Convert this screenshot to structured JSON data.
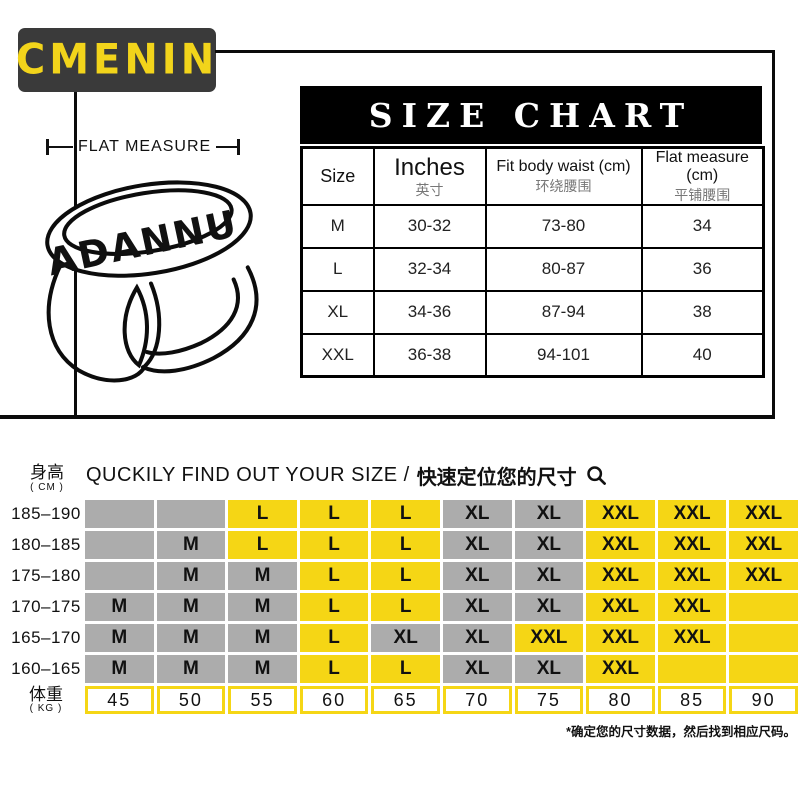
{
  "colors": {
    "accent_yellow": "#F5D615",
    "cell_gray": "#ACACAC",
    "logo_bg": "#3A3A3A",
    "table_black": "#000000"
  },
  "icons": {
    "search": "magnifier-icon"
  },
  "brand": {
    "logo_text": "CMENIN"
  },
  "illustration": {
    "flat_measure_label": "FLAT MEASURE",
    "waistband_text": "ADANNU"
  },
  "size_chart": {
    "title": "SIZE CHART",
    "columns": [
      {
        "en": "Size",
        "zh": ""
      },
      {
        "en": "Inches",
        "zh": "英寸"
      },
      {
        "en": "Fit body waist (cm)",
        "zh": "环绕腰围"
      },
      {
        "en": "Flat measure (cm)",
        "zh": "平铺腰围"
      }
    ],
    "rows": [
      {
        "size": "M",
        "inches": "30-32",
        "fit": "73-80",
        "flat": "34"
      },
      {
        "size": "L",
        "inches": "32-34",
        "fit": "80-87",
        "flat": "36"
      },
      {
        "size": "XL",
        "inches": "34-36",
        "fit": "87-94",
        "flat": "38"
      },
      {
        "size": "XXL",
        "inches": "36-38",
        "fit": "94-101",
        "flat": "40"
      }
    ]
  },
  "finder": {
    "title_en": "QUCKILY FIND OUT YOUR SIZE /",
    "title_zh": "快速定位您的尺寸",
    "height_label": "身高",
    "height_unit": "( CM )",
    "weight_label": "体重",
    "weight_unit": "( KG )",
    "weights": [
      "45",
      "50",
      "55",
      "60",
      "65",
      "70",
      "75",
      "80",
      "85",
      "90"
    ],
    "rows": [
      {
        "height": "185–190",
        "cells": [
          {
            "v": "",
            "bg": "g"
          },
          {
            "v": "",
            "bg": "g"
          },
          {
            "v": "L",
            "bg": "y"
          },
          {
            "v": "L",
            "bg": "y"
          },
          {
            "v": "L",
            "bg": "y"
          },
          {
            "v": "XL",
            "bg": "g"
          },
          {
            "v": "XL",
            "bg": "g"
          },
          {
            "v": "XXL",
            "bg": "y"
          },
          {
            "v": "XXL",
            "bg": "y"
          },
          {
            "v": "XXL",
            "bg": "y"
          }
        ]
      },
      {
        "height": "180–185",
        "cells": [
          {
            "v": "",
            "bg": "g"
          },
          {
            "v": "M",
            "bg": "g"
          },
          {
            "v": "L",
            "bg": "y"
          },
          {
            "v": "L",
            "bg": "y"
          },
          {
            "v": "L",
            "bg": "y"
          },
          {
            "v": "XL",
            "bg": "g"
          },
          {
            "v": "XL",
            "bg": "g"
          },
          {
            "v": "XXL",
            "bg": "y"
          },
          {
            "v": "XXL",
            "bg": "y"
          },
          {
            "v": "XXL",
            "bg": "y"
          }
        ]
      },
      {
        "height": "175–180",
        "cells": [
          {
            "v": "",
            "bg": "g"
          },
          {
            "v": "M",
            "bg": "g"
          },
          {
            "v": "M",
            "bg": "g"
          },
          {
            "v": "L",
            "bg": "y"
          },
          {
            "v": "L",
            "bg": "y"
          },
          {
            "v": "XL",
            "bg": "g"
          },
          {
            "v": "XL",
            "bg": "g"
          },
          {
            "v": "XXL",
            "bg": "y"
          },
          {
            "v": "XXL",
            "bg": "y"
          },
          {
            "v": "XXL",
            "bg": "y"
          }
        ]
      },
      {
        "height": "170–175",
        "cells": [
          {
            "v": "M",
            "bg": "g"
          },
          {
            "v": "M",
            "bg": "g"
          },
          {
            "v": "M",
            "bg": "g"
          },
          {
            "v": "L",
            "bg": "y"
          },
          {
            "v": "L",
            "bg": "y"
          },
          {
            "v": "XL",
            "bg": "g"
          },
          {
            "v": "XL",
            "bg": "g"
          },
          {
            "v": "XXL",
            "bg": "y"
          },
          {
            "v": "XXL",
            "bg": "y"
          },
          {
            "v": "",
            "bg": "y"
          }
        ]
      },
      {
        "height": "165–170",
        "cells": [
          {
            "v": "M",
            "bg": "g"
          },
          {
            "v": "M",
            "bg": "g"
          },
          {
            "v": "M",
            "bg": "g"
          },
          {
            "v": "L",
            "bg": "y"
          },
          {
            "v": "XL",
            "bg": "g"
          },
          {
            "v": "XL",
            "bg": "g"
          },
          {
            "v": "XXL",
            "bg": "y"
          },
          {
            "v": "XXL",
            "bg": "y"
          },
          {
            "v": "XXL",
            "bg": "y"
          },
          {
            "v": "",
            "bg": "y"
          }
        ]
      },
      {
        "height": "160–165",
        "cells": [
          {
            "v": "M",
            "bg": "g"
          },
          {
            "v": "M",
            "bg": "g"
          },
          {
            "v": "M",
            "bg": "g"
          },
          {
            "v": "L",
            "bg": "y"
          },
          {
            "v": "L",
            "bg": "y"
          },
          {
            "v": "XL",
            "bg": "g"
          },
          {
            "v": "XL",
            "bg": "g"
          },
          {
            "v": "XXL",
            "bg": "y"
          },
          {
            "v": "",
            "bg": "y"
          },
          {
            "v": "",
            "bg": "y"
          }
        ]
      }
    ],
    "footnote": "*确定您的尺寸数据，然后找到相应尺码。"
  }
}
